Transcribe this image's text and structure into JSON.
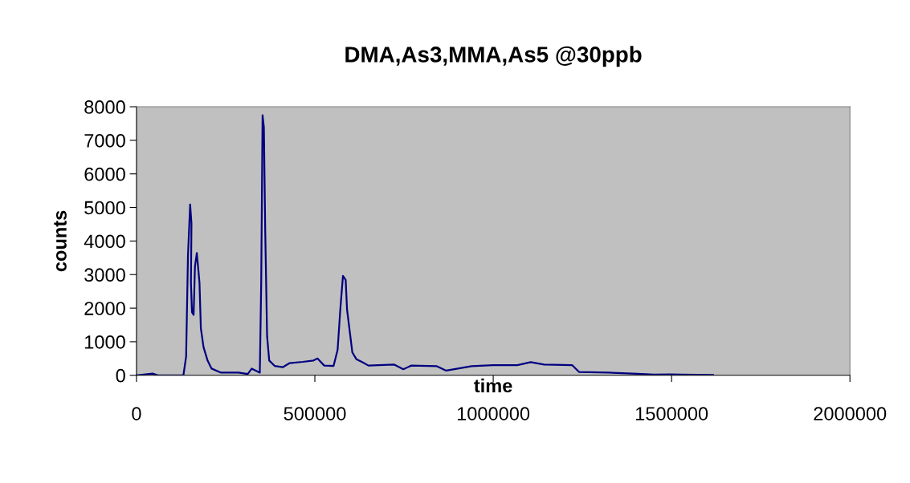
{
  "chart_data": {
    "type": "line",
    "title": "DMA,As3,MMA,As5 @30ppb",
    "xlabel": "time",
    "ylabel": "counts",
    "xlim": [
      0,
      2000000
    ],
    "xticks": [
      0,
      500000,
      1000000,
      1500000,
      2000000
    ],
    "ylim": [
      0,
      8000
    ],
    "yticks": [
      0,
      1000,
      2000,
      3000,
      4000,
      5000,
      6000,
      7000,
      8000
    ],
    "grid": false,
    "marker": "none",
    "line_style": "solid",
    "series": [
      {
        "color": "#000080",
        "x": [
          0,
          45100,
          60000,
          131500,
          139100,
          144300,
          150400,
          154100,
          152600,
          155600,
          160100,
          163900,
          169100,
          176600,
          180400,
          187900,
          199200,
          210500,
          236800,
          285700,
          311900,
          323200,
          345700,
          349600,
          353400,
          357100,
          360800,
          366100,
          372100,
          387200,
          409800,
          428500,
          466200,
          496200,
          507400,
          526200,
          552500,
          563800,
          571300,
          578800,
          586400,
          590200,
          597700,
          605100,
          616400,
          631500,
          650200,
          721700,
          748000,
          770600,
          842000,
          868300,
          939800,
          999800,
          1067500,
          1105100,
          1142700,
          1221700,
          1240400,
          1323100,
          1390800,
          1451000,
          1496000,
          1526200,
          1616400
        ],
        "values": [
          0,
          50,
          0,
          0,
          560,
          3560,
          5090,
          4520,
          2760,
          1880,
          1800,
          3240,
          3640,
          2760,
          1400,
          840,
          440,
          200,
          80,
          80,
          40,
          200,
          80,
          2760,
          7750,
          7390,
          4350,
          1160,
          440,
          280,
          240,
          360,
          400,
          440,
          500,
          290,
          280,
          760,
          1960,
          2960,
          2840,
          1960,
          1320,
          680,
          480,
          400,
          290,
          320,
          180,
          290,
          270,
          140,
          270,
          300,
          300,
          390,
          320,
          300,
          100,
          80,
          50,
          20,
          30,
          20,
          10
        ]
      }
    ]
  }
}
